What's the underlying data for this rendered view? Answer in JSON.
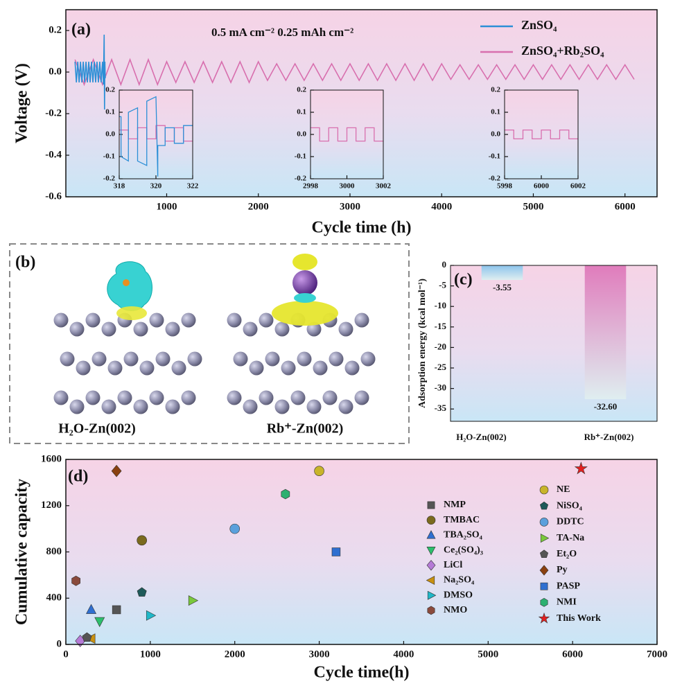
{
  "chart_data": [
    {
      "type": "line",
      "label": "(a)",
      "annotation": "0.5 mA cm⁻²  0.25 mAh cm⁻²",
      "xlabel": "Cycle time (h)",
      "ylabel": "Voltage (V)",
      "xlim": [
        -100,
        6350
      ],
      "xticks": [
        1000,
        2000,
        3000,
        4000,
        5000,
        6000
      ],
      "ylim": [
        -0.6,
        0.3
      ],
      "yticks": [
        -0.6,
        -0.4,
        -0.2,
        {
          "value": 0,
          "label": "0.0"
        },
        0.2
      ],
      "legend": "upper right",
      "series": [
        {
          "name": "ZnSO₄",
          "color": "#2b8fd6",
          "x": [
            0,
            15,
            30,
            45,
            60,
            75,
            90,
            105,
            120,
            135,
            150,
            165,
            180,
            195,
            210,
            225,
            240,
            255,
            270,
            285,
            300,
            310,
            318,
            322,
            326,
            330
          ],
          "values": [
            0.05,
            -0.05,
            0.05,
            -0.05,
            0.05,
            -0.05,
            0.05,
            -0.05,
            0.05,
            -0.05,
            0.05,
            -0.05,
            0.05,
            -0.05,
            0.05,
            -0.05,
            0.05,
            -0.05,
            0.05,
            -0.05,
            0.05,
            -0.06,
            0.18,
            -0.18,
            0.05,
            -0.03
          ]
        },
        {
          "name": "ZnSO₄+Rb₂SO₄",
          "color": "#d86fae",
          "x": [
            0,
            100,
            200,
            300,
            400,
            500,
            600,
            700,
            800,
            900,
            1000,
            1100,
            1200,
            1300,
            1400,
            1500,
            1600,
            1700,
            1800,
            1900,
            2000,
            2100,
            2200,
            2300,
            2400,
            2500,
            2600,
            2700,
            2800,
            2900,
            3000,
            3100,
            3200,
            3300,
            3400,
            3500,
            3600,
            3700,
            3800,
            3900,
            4000,
            4100,
            4200,
            4300,
            4400,
            4500,
            4600,
            4700,
            4800,
            4900,
            5000,
            5100,
            5200,
            5300,
            5400,
            5500,
            5600,
            5700,
            5800,
            5900,
            6000,
            6100
          ],
          "values": [
            0.06,
            -0.06,
            0.06,
            -0.06,
            0.06,
            -0.06,
            0.06,
            -0.06,
            0.06,
            -0.06,
            0.05,
            -0.05,
            0.05,
            -0.05,
            0.05,
            -0.05,
            0.05,
            -0.05,
            0.05,
            -0.05,
            0.05,
            -0.04,
            0.04,
            -0.04,
            0.04,
            -0.04,
            0.04,
            -0.04,
            0.04,
            -0.04,
            0.04,
            -0.04,
            0.04,
            -0.04,
            0.04,
            -0.04,
            0.04,
            -0.04,
            0.04,
            -0.04,
            0.04,
            -0.035,
            0.035,
            -0.035,
            0.035,
            -0.035,
            0.035,
            -0.035,
            0.035,
            -0.035,
            0.035,
            -0.035,
            0.035,
            -0.035,
            0.035,
            -0.035,
            0.035,
            -0.035,
            0.035,
            -0.035,
            0.035,
            -0.035
          ]
        }
      ]
    },
    {
      "type": "line",
      "xlim": [
        318,
        322
      ],
      "xticks": [
        318,
        320,
        322
      ],
      "ylim": [
        -0.2,
        0.2
      ],
      "yticks": [
        -0.2,
        -0.1,
        {
          "value": 0,
          "label": "0.0"
        },
        0.1,
        0.2
      ],
      "series": [
        {
          "color": "#2b8fd6",
          "x": [
            318,
            318.1,
            318.1,
            318.5,
            318.5,
            319,
            319,
            319.5,
            319.5,
            320,
            320,
            320.1,
            320.1,
            320.5,
            320.5,
            321,
            321,
            321.5,
            321.5,
            322
          ],
          "values": [
            0.08,
            0.08,
            -0.1,
            -0.12,
            0.1,
            0.12,
            -0.12,
            -0.14,
            0.15,
            0.17,
            0.17,
            -0.19,
            -0.05,
            -0.05,
            0.03,
            0.03,
            -0.04,
            -0.04,
            0.04,
            0.04
          ]
        },
        {
          "color": "#d86fae",
          "x": [
            318,
            318.5,
            318.5,
            319,
            319,
            319.5,
            319.5,
            320,
            320,
            320.5,
            320.5,
            321,
            321,
            321.5,
            321.5,
            322
          ],
          "values": [
            0.02,
            0.02,
            -0.02,
            -0.02,
            0.03,
            0.03,
            -0.02,
            -0.02,
            0.04,
            0.04,
            -0.03,
            -0.03,
            0.03,
            0.03,
            -0.03,
            -0.03
          ]
        }
      ]
    },
    {
      "type": "line",
      "xlim": [
        2998,
        3002
      ],
      "xticks": [
        2998,
        3000,
        3002
      ],
      "ylim": [
        -0.2,
        0.2
      ],
      "yticks": [
        -0.2,
        -0.1,
        {
          "value": 0,
          "label": "0.0"
        },
        0.1,
        0.2
      ],
      "series": [
        {
          "color": "#d86fae",
          "x": [
            2998,
            2998.5,
            2998.5,
            2999,
            2999,
            2999.5,
            2999.5,
            3000,
            3000,
            3000.5,
            3000.5,
            3001,
            3001,
            3001.5,
            3001.5,
            3002
          ],
          "values": [
            0.03,
            0.03,
            -0.03,
            -0.03,
            0.03,
            0.03,
            -0.03,
            -0.03,
            0.03,
            0.03,
            -0.03,
            -0.03,
            0.03,
            0.03,
            -0.03,
            -0.03
          ]
        }
      ]
    },
    {
      "type": "line",
      "xlim": [
        5998,
        6002
      ],
      "xticks": [
        5998,
        6000,
        6002
      ],
      "ylim": [
        -0.2,
        0.2
      ],
      "yticks": [
        -0.2,
        -0.1,
        {
          "value": 0,
          "label": "0.0"
        },
        0.1,
        0.2
      ],
      "series": [
        {
          "color": "#d86fae",
          "x": [
            5998,
            5998.5,
            5998.5,
            5999,
            5999,
            5999.5,
            5999.5,
            6000,
            6000,
            6000.5,
            6000.5,
            6001,
            6001,
            6001.5,
            6001.5,
            6002
          ],
          "values": [
            0.02,
            0.02,
            -0.02,
            -0.02,
            0.02,
            0.02,
            -0.02,
            -0.02,
            0.02,
            0.02,
            -0.02,
            -0.02,
            0.02,
            0.02,
            -0.02,
            -0.02
          ]
        }
      ]
    },
    {
      "type": "bar",
      "label": "(c)",
      "ylabel": "Adsorption energy (kcal mol⁻¹)",
      "categories": [
        "H₂O-Zn(002)",
        "Rb⁺-Zn(002)"
      ],
      "values": [
        -3.55,
        -32.6
      ],
      "value_labels": [
        "-3.55",
        "-32.60"
      ],
      "colors": [
        "#8cc4ec",
        "#e07cbc"
      ],
      "ylim": [
        -38,
        0
      ],
      "yticks": [
        0,
        -5,
        -10,
        -15,
        -20,
        -25,
        -30,
        -35
      ]
    },
    {
      "type": "scatter",
      "label": "(d)",
      "xlabel": "Cycle time(h)",
      "ylabel": "Cumulative capacity",
      "xlim": [
        0,
        7000
      ],
      "xticks": [
        0,
        1000,
        2000,
        3000,
        4000,
        5000,
        6000,
        7000
      ],
      "ylim": [
        0,
        1600
      ],
      "yticks": [
        0,
        400,
        800,
        1200,
        1600
      ],
      "series": [
        {
          "name": "NMP",
          "color": "#555555",
          "marker": "square",
          "x": [
            600
          ],
          "values": [
            300
          ]
        },
        {
          "name": "TMBAC",
          "color": "#7a6a1e",
          "marker": "circle",
          "x": [
            900
          ],
          "values": [
            900
          ]
        },
        {
          "name": "TBA₂SO₄",
          "color": "#2f6fd0",
          "marker": "triangle-up",
          "x": [
            300
          ],
          "values": [
            300
          ]
        },
        {
          "name": "Ce₂(SO₄)₃",
          "color": "#2cbf6c",
          "marker": "triangle-down",
          "x": [
            400
          ],
          "values": [
            200
          ]
        },
        {
          "name": "LiCl",
          "color": "#b57ad6",
          "marker": "diamond",
          "x": [
            170
          ],
          "values": [
            30
          ]
        },
        {
          "name": "Na₂SO₄",
          "color": "#c89010",
          "marker": "triangle-left",
          "x": [
            300
          ],
          "values": [
            50
          ]
        },
        {
          "name": "DMSO",
          "color": "#20b8c8",
          "marker": "triangle-right",
          "x": [
            1000
          ],
          "values": [
            250
          ]
        },
        {
          "name": "NMO",
          "color": "#8a4a3c",
          "marker": "hexagon",
          "x": [
            120
          ],
          "values": [
            550
          ]
        },
        {
          "name": "NE",
          "color": "#c8b42a",
          "marker": "circle",
          "x": [
            3000
          ],
          "values": [
            1500
          ]
        },
        {
          "name": "NiSO₄",
          "color": "#1e5a5a",
          "marker": "pentagon",
          "x": [
            900
          ],
          "values": [
            450
          ]
        },
        {
          "name": "DDTC",
          "color": "#5aa0dc",
          "marker": "circle",
          "x": [
            2000
          ],
          "values": [
            1000
          ]
        },
        {
          "name": "TA-Na",
          "color": "#7ac83c",
          "marker": "triangle-right",
          "x": [
            1500
          ],
          "values": [
            380
          ]
        },
        {
          "name": "Et₂O",
          "color": "#555555",
          "marker": "pentagon",
          "x": [
            250
          ],
          "values": [
            60
          ]
        },
        {
          "name": "Py",
          "color": "#8a4010",
          "marker": "diamond",
          "x": [
            600
          ],
          "values": [
            1500
          ]
        },
        {
          "name": "PASP",
          "color": "#2f6fd0",
          "marker": "square",
          "x": [
            3200
          ],
          "values": [
            800
          ]
        },
        {
          "name": "NMI",
          "color": "#2cb070",
          "marker": "hexagon",
          "x": [
            2600
          ],
          "values": [
            1300
          ]
        },
        {
          "name": "This Work",
          "color": "#e42020",
          "marker": "star",
          "x": [
            6100
          ],
          "values": [
            1520
          ]
        }
      ]
    }
  ],
  "panel_b": {
    "label": "(b)",
    "structures": [
      "H₂O-Zn(002)",
      "Rb⁺-Zn(002)"
    ]
  }
}
